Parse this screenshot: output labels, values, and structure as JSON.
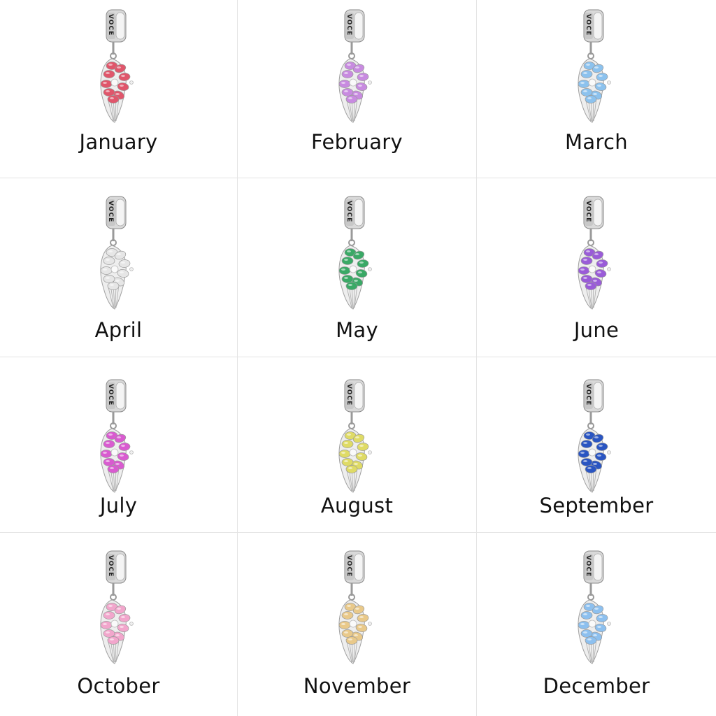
{
  "engraving": "VOCE",
  "charms": [
    {
      "month": "January",
      "color": "#e0566b"
    },
    {
      "month": "February",
      "color": "#c88be0"
    },
    {
      "month": "March",
      "color": "#8cc2ee"
    },
    {
      "month": "April",
      "color": "#e6e6e6"
    },
    {
      "month": "May",
      "color": "#3aa966"
    },
    {
      "month": "June",
      "color": "#9a5cd8"
    },
    {
      "month": "July",
      "color": "#d95bd0"
    },
    {
      "month": "August",
      "color": "#dfdb66"
    },
    {
      "month": "September",
      "color": "#2a55c2"
    },
    {
      "month": "October",
      "color": "#f2a6cc"
    },
    {
      "month": "November",
      "color": "#e9c98a"
    },
    {
      "month": "December",
      "color": "#8dc0ef"
    }
  ]
}
